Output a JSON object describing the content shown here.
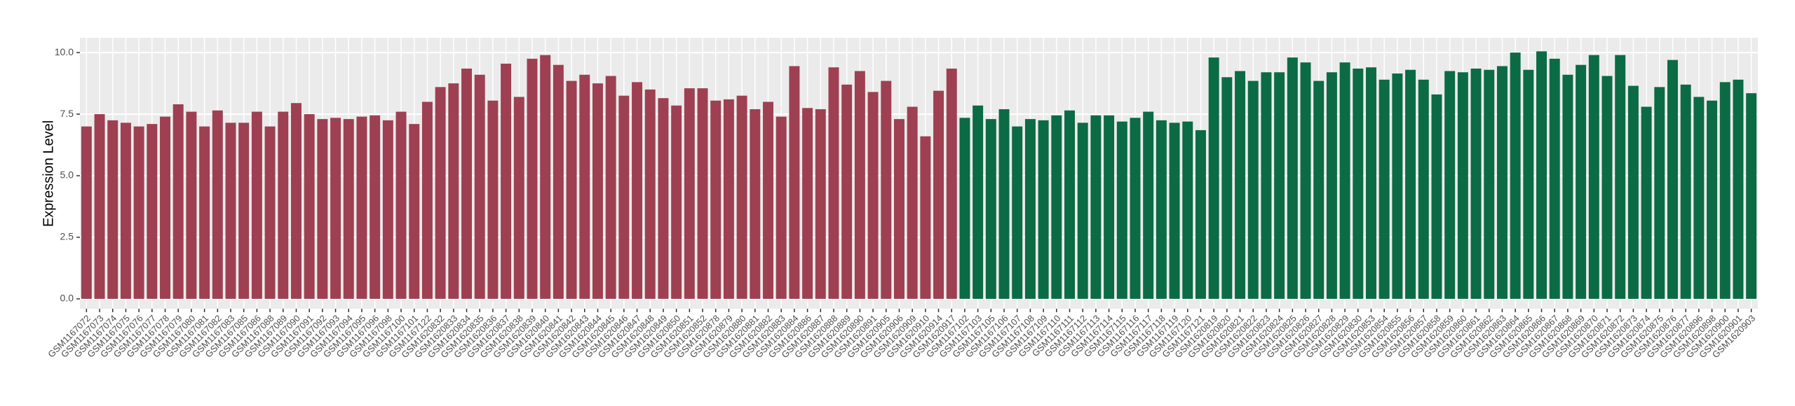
{
  "chart_data": {
    "type": "bar",
    "y_label": "Expression Level",
    "ylim": [
      -0.4,
      10.6
    ],
    "yticks": [
      {
        "value": 0,
        "label": "0.0"
      },
      2.5,
      {
        "value": 5,
        "label": "5.0"
      },
      7.5,
      {
        "value": 10,
        "label": "10.0"
      }
    ],
    "grid": true,
    "categories": [
      "GSM1167072",
      "GSM1167073",
      "GSM1167074",
      "GSM1167075",
      "GSM1167076",
      "GSM1167077",
      "GSM1167078",
      "GSM1167079",
      "GSM1167080",
      "GSM1167081",
      "GSM1167082",
      "GSM1167083",
      "GSM1167085",
      "GSM1167086",
      "GSM1167088",
      "GSM1167089",
      "GSM1167090",
      "GSM1167091",
      "GSM1167092",
      "GSM1167093",
      "GSM1167094",
      "GSM1167095",
      "GSM1167096",
      "GSM1167098",
      "GSM1167100",
      "GSM1167101",
      "GSM1167122",
      "GSM1620832",
      "GSM1620833",
      "GSM1620834",
      "GSM1620835",
      "GSM1620836",
      "GSM1620837",
      "GSM1620838",
      "GSM1620839",
      "GSM1620840",
      "GSM1620841",
      "GSM1620842",
      "GSM1620843",
      "GSM1620844",
      "GSM1620845",
      "GSM1620846",
      "GSM1620847",
      "GSM1620848",
      "GSM1620849",
      "GSM1620850",
      "GSM1620851",
      "GSM1620852",
      "GSM1620878",
      "GSM1620879",
      "GSM1620880",
      "GSM1620881",
      "GSM1620882",
      "GSM1620883",
      "GSM1620884",
      "GSM1620886",
      "GSM1620887",
      "GSM1620888",
      "GSM1620889",
      "GSM1620890",
      "GSM1620891",
      "GSM1620905",
      "GSM1620906",
      "GSM1620909",
      "GSM1620910",
      "GSM1620914",
      "GSM1620917",
      "GSM1167102",
      "GSM1167103",
      "GSM1167105",
      "GSM1167106",
      "GSM1167107",
      "GSM1167108",
      "GSM1167109",
      "GSM1167110",
      "GSM1167111",
      "GSM1167112",
      "GSM1167113",
      "GSM1167114",
      "GSM1167115",
      "GSM1167116",
      "GSM1167117",
      "GSM1167118",
      "GSM1167119",
      "GSM1167120",
      "GSM1167121",
      "GSM1620819",
      "GSM1620820",
      "GSM1620821",
      "GSM1620822",
      "GSM1620823",
      "GSM1620824",
      "GSM1620825",
      "GSM1620826",
      "GSM1620827",
      "GSM1620828",
      "GSM1620829",
      "GSM1620830",
      "GSM1620853",
      "GSM1620854",
      "GSM1620855",
      "GSM1620856",
      "GSM1620857",
      "GSM1620858",
      "GSM1620859",
      "GSM1620860",
      "GSM1620861",
      "GSM1620862",
      "GSM1620863",
      "GSM1620864",
      "GSM1620865",
      "GSM1620866",
      "GSM1620867",
      "GSM1620868",
      "GSM1620869",
      "GSM1620870",
      "GSM1620871",
      "GSM1620872",
      "GSM1620873",
      "GSM1620874",
      "GSM1620875",
      "GSM1620876",
      "GSM1620877",
      "GSM1620896",
      "GSM1620898",
      "GSM1620900",
      "GSM1620901",
      "GSM1620903"
    ],
    "series": [
      {
        "color": "#9e4052",
        "values": [
          7.0,
          7.5,
          7.25,
          7.15,
          7.0,
          7.1,
          7.4,
          7.9,
          7.6,
          7.0,
          7.65,
          7.15,
          7.15,
          7.6,
          7.0,
          7.6,
          7.95,
          7.5,
          7.3,
          7.35,
          7.3,
          7.4,
          7.45,
          7.25,
          7.6,
          7.1,
          8.0,
          8.6,
          8.75,
          9.35,
          9.1,
          8.05,
          9.55,
          8.2,
          9.75,
          9.9,
          9.5,
          8.85,
          9.1,
          8.75,
          9.05,
          8.25,
          8.8,
          8.5,
          8.15,
          7.85,
          8.55,
          8.55,
          8.05,
          8.1,
          8.25,
          7.7,
          8.0,
          7.4,
          9.45,
          7.75,
          7.7,
          9.4,
          8.7,
          9.25,
          8.4,
          8.85,
          7.3,
          7.8,
          6.6,
          8.45,
          9.35,
          null,
          null,
          null,
          null,
          null,
          null,
          null,
          null,
          null,
          null,
          null,
          null,
          null,
          null,
          null,
          null,
          null,
          null,
          null,
          null,
          null,
          null,
          null,
          null,
          null,
          null,
          null,
          null,
          null,
          null,
          null,
          null,
          null,
          null,
          null,
          null,
          null,
          null,
          null,
          null,
          null,
          null,
          null,
          null,
          null,
          null,
          null,
          null,
          null,
          null,
          null,
          null,
          null,
          null,
          null,
          null,
          null,
          null,
          null,
          null,
          null
        ]
      },
      {
        "color": "#0b6b45",
        "values": [
          null,
          null,
          null,
          null,
          null,
          null,
          null,
          null,
          null,
          null,
          null,
          null,
          null,
          null,
          null,
          null,
          null,
          null,
          null,
          null,
          null,
          null,
          null,
          null,
          null,
          null,
          null,
          null,
          null,
          null,
          null,
          null,
          null,
          null,
          null,
          null,
          null,
          null,
          null,
          null,
          null,
          null,
          null,
          null,
          null,
          null,
          null,
          null,
          null,
          null,
          null,
          null,
          null,
          null,
          null,
          null,
          null,
          null,
          null,
          null,
          null,
          null,
          null,
          null,
          null,
          null,
          null,
          7.35,
          7.85,
          7.3,
          7.7,
          7.0,
          7.3,
          7.25,
          7.45,
          7.65,
          7.15,
          7.45,
          7.45,
          7.2,
          7.35,
          7.6,
          7.25,
          7.15,
          7.2,
          6.85,
          9.8,
          9.0,
          9.25,
          8.85,
          9.2,
          9.2,
          9.8,
          9.6,
          8.85,
          9.2,
          9.6,
          9.35,
          9.4,
          8.9,
          9.15,
          9.3,
          8.9,
          8.3,
          9.25,
          9.2,
          9.35,
          9.3,
          9.45,
          10.0,
          9.3,
          10.05,
          9.75,
          9.1,
          9.5,
          9.9,
          9.05,
          9.9,
          8.65,
          7.8,
          8.6,
          9.7,
          8.7,
          8.2,
          8.05,
          8.8,
          8.9,
          8.35
        ]
      }
    ]
  }
}
